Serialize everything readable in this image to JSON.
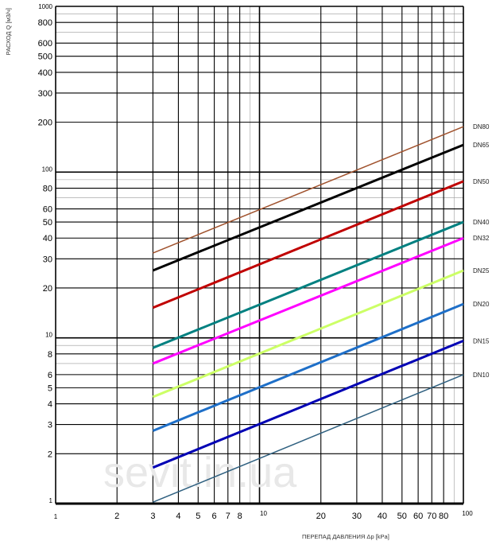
{
  "chart_data": {
    "type": "line",
    "xscale": "log",
    "yscale": "log",
    "xlim": [
      1,
      100
    ],
    "ylim": [
      1,
      1000
    ],
    "xlabel": "ПЕРЕПАД ДАВЛЕНИЯ Δp  [kPa]",
    "ylabel": "РАСХОД Q  [м3/ч]",
    "watermark": "sevit.in.ua",
    "grid": true,
    "x_ticks": [
      1,
      2,
      3,
      4,
      5,
      6,
      7,
      8,
      10,
      20,
      30,
      40,
      50,
      60,
      70,
      80,
      100
    ],
    "x_tick_labels": [
      "1",
      "2",
      "3",
      "4",
      "5",
      "6",
      "7",
      "8",
      "10",
      "20",
      "30",
      "40",
      "50",
      "60",
      "70",
      "80",
      "100"
    ],
    "y_ticks": [
      1,
      2,
      3,
      4,
      5,
      6,
      8,
      10,
      20,
      30,
      40,
      50,
      60,
      80,
      100,
      200,
      300,
      400,
      500,
      600,
      800,
      1000
    ],
    "y_tick_labels": [
      "1",
      "2",
      "3",
      "4",
      "5",
      "6",
      "8",
      "10",
      "20",
      "30",
      "40",
      "50",
      "60",
      "80",
      "100",
      "200",
      "300",
      "400",
      "500",
      "600",
      "800",
      "1000"
    ],
    "x_minor_grid": [
      9,
      90
    ],
    "y_minor_grid": [
      7,
      9,
      70,
      90,
      700,
      900
    ],
    "series": [
      {
        "name": "DN80",
        "color": "#a0522d",
        "width": 1.5,
        "x": [
          3,
          100
        ],
        "y": [
          32.5,
          188
        ]
      },
      {
        "name": "DN65",
        "color": "#000000",
        "width": 3,
        "x": [
          3,
          100
        ],
        "y": [
          25.5,
          146
        ]
      },
      {
        "name": "DN50",
        "color": "#c00000",
        "width": 3,
        "x": [
          3,
          100
        ],
        "y": [
          15.2,
          88
        ]
      },
      {
        "name": "DN40",
        "color": "#008080",
        "width": 3,
        "x": [
          3,
          100
        ],
        "y": [
          8.7,
          50
        ]
      },
      {
        "name": "DN32",
        "color": "#ff00ff",
        "width": 3,
        "x": [
          3,
          100
        ],
        "y": [
          7.0,
          40
        ]
      },
      {
        "name": "DN25",
        "color": "#ccff66",
        "width": 3,
        "x": [
          3,
          100
        ],
        "y": [
          4.4,
          25.5
        ]
      },
      {
        "name": "DN20",
        "color": "#1e6fc8",
        "width": 3,
        "x": [
          3,
          100
        ],
        "y": [
          2.75,
          16
        ]
      },
      {
        "name": "DN15",
        "color": "#0000b4",
        "width": 3,
        "x": [
          3,
          100
        ],
        "y": [
          1.65,
          9.6
        ]
      },
      {
        "name": "DN10",
        "color": "#2f6080",
        "width": 1.5,
        "x": [
          3,
          100
        ],
        "y": [
          1.02,
          6.0
        ]
      }
    ]
  }
}
